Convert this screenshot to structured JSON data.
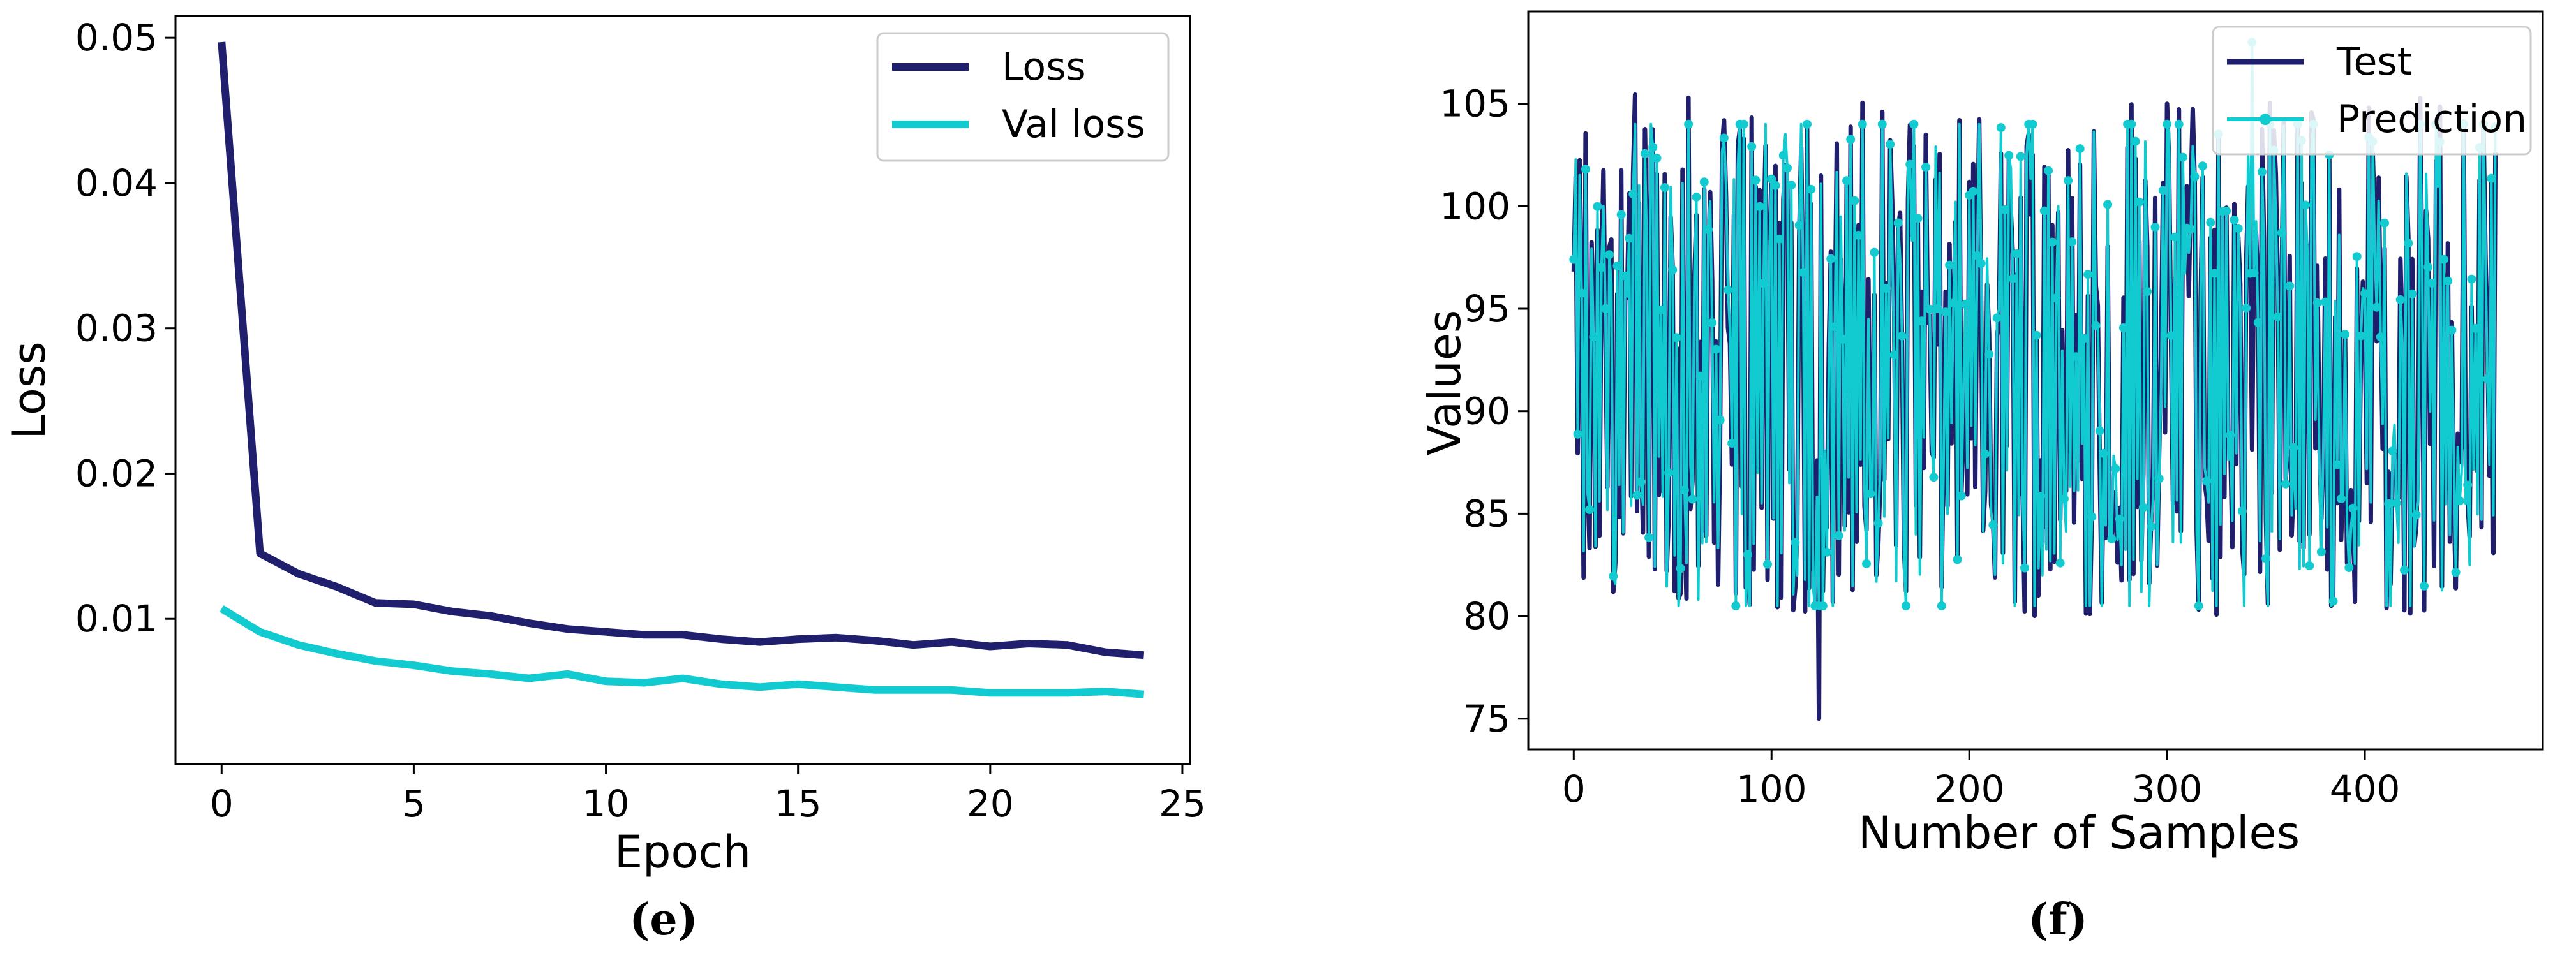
{
  "colors": {
    "loss": "#1f1f6e",
    "val_loss": "#12cbd1",
    "test": "#1f1f6e",
    "prediction": "#12cbd1"
  },
  "chart_data": [
    {
      "type": "line",
      "caption": "(e)",
      "title": "",
      "xlabel": "Epoch",
      "ylabel": "Loss",
      "xlim": [
        -1.2,
        25.2
      ],
      "ylim": [
        0.0,
        0.0515
      ],
      "xticks": [
        0,
        5,
        10,
        15,
        20,
        25
      ],
      "xtick_labels": [
        "0",
        "5",
        "10",
        "15",
        "20",
        "25"
      ],
      "yticks": [
        0.01,
        0.02,
        0.03,
        0.04,
        0.05
      ],
      "ytick_labels": [
        "0.01",
        "0.02",
        "0.03",
        "0.04",
        "0.05"
      ],
      "legend_position": "top-right",
      "series": [
        {
          "name": "Loss",
          "x": [
            0,
            1,
            2,
            3,
            4,
            5,
            6,
            7,
            8,
            9,
            10,
            11,
            12,
            13,
            14,
            15,
            16,
            17,
            18,
            19,
            20,
            21,
            22,
            23,
            24
          ],
          "values": [
            0.0497,
            0.0145,
            0.0131,
            0.0122,
            0.0111,
            0.011,
            0.0105,
            0.0102,
            0.0097,
            0.0093,
            0.0091,
            0.0089,
            0.0089,
            0.0086,
            0.0084,
            0.0086,
            0.0087,
            0.0085,
            0.0082,
            0.0084,
            0.0081,
            0.0083,
            0.0082,
            0.0077,
            0.0075
          ]
        },
        {
          "name": "Val loss",
          "x": [
            0,
            1,
            2,
            3,
            4,
            5,
            6,
            7,
            8,
            9,
            10,
            11,
            12,
            13,
            14,
            15,
            16,
            17,
            18,
            19,
            20,
            21,
            22,
            23,
            24
          ],
          "values": [
            0.0107,
            0.0091,
            0.0082,
            0.0076,
            0.0071,
            0.0068,
            0.0064,
            0.0062,
            0.0059,
            0.0062,
            0.0057,
            0.0056,
            0.0059,
            0.0055,
            0.0053,
            0.0055,
            0.0053,
            0.0051,
            0.0051,
            0.0051,
            0.0049,
            0.0049,
            0.0049,
            0.005,
            0.0048
          ]
        }
      ]
    },
    {
      "type": "line",
      "caption": "(f)",
      "title": "",
      "xlabel": "Number of Samples",
      "ylabel": "Values",
      "xlim": [
        -23,
        490
      ],
      "ylim": [
        73.5,
        109.5
      ],
      "xticks": [
        0,
        100,
        200,
        300,
        400
      ],
      "xtick_labels": [
        "0",
        "100",
        "200",
        "300",
        "400"
      ],
      "yticks": [
        75,
        80,
        85,
        90,
        95,
        100,
        105
      ],
      "ytick_labels": [
        "75",
        "80",
        "85",
        "90",
        "95",
        "100",
        "105"
      ],
      "legend_position": "top-right",
      "sample_count": 467,
      "series": [
        {
          "name": "Test",
          "marker": "none",
          "min": 75,
          "max": 105.5,
          "length": 467
        },
        {
          "name": "Prediction",
          "marker": "circle",
          "min": 80.5,
          "max": 108,
          "length": 467
        }
      ]
    }
  ]
}
